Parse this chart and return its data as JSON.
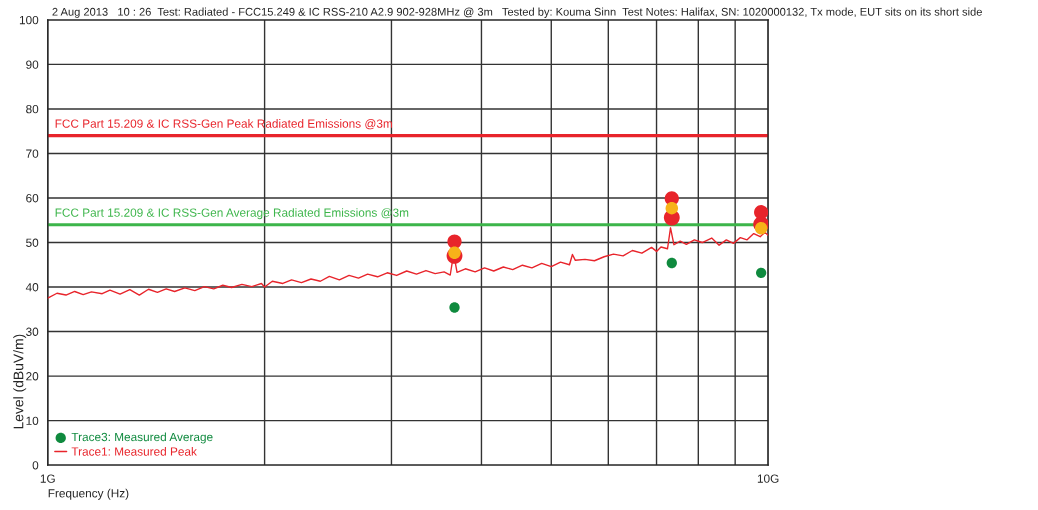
{
  "chart_data": {
    "type": "line",
    "title": "2 Aug 2013   10 : 26  Test: Radiated - FCC15.249 & IC RSS-210 A2.9 902-928MHz @ 3m   Tested by: Kouma Sinn  Test Notes: Halifax, SN: 1020000132, Tx mode, EUT sits on its short side",
    "xlabel": "Frequency (Hz)",
    "ylabel": "Level (dBuV/m)",
    "log": "x",
    "xlim": [
      1,
      10
    ],
    "xticks": [
      {
        "value": 1,
        "label": "1G"
      },
      {
        "value": 2,
        "label": null
      },
      {
        "value": 3,
        "label": null
      },
      {
        "value": 4,
        "label": null
      },
      {
        "value": 5,
        "label": null
      },
      {
        "value": 6,
        "label": null
      },
      {
        "value": 7,
        "label": null
      },
      {
        "value": 8,
        "label": null
      },
      {
        "value": 9,
        "label": null
      },
      {
        "value": 10,
        "label": "10G"
      }
    ],
    "ylim": [
      0,
      100
    ],
    "yticks": [
      0,
      10,
      20,
      30,
      40,
      50,
      60,
      70,
      80,
      90,
      100
    ],
    "grid": true,
    "legend": "bottom left",
    "series": [
      {
        "name": "Trace1: Measured Peak",
        "color": "#e8242b",
        "marker": "none",
        "x": [
          1.0,
          1.03,
          1.06,
          1.09,
          1.12,
          1.15,
          1.19,
          1.22,
          1.26,
          1.3,
          1.34,
          1.38,
          1.42,
          1.46,
          1.5,
          1.55,
          1.6,
          1.65,
          1.7,
          1.75,
          1.8,
          1.86,
          1.92,
          1.98,
          2.0,
          2.05,
          2.12,
          2.18,
          2.25,
          2.32,
          2.39,
          2.46,
          2.54,
          2.62,
          2.7,
          2.78,
          2.87,
          2.96,
          3.05,
          3.15,
          3.25,
          3.35,
          3.45,
          3.55,
          3.62,
          3.66,
          3.7,
          3.8,
          3.92,
          4.04,
          4.16,
          4.29,
          4.42,
          4.56,
          4.7,
          4.85,
          5.0,
          5.15,
          5.3,
          5.35,
          5.4,
          5.57,
          5.74,
          5.92,
          6.1,
          6.29,
          6.48,
          6.68,
          6.89,
          7.0,
          7.1,
          7.25,
          7.32,
          7.4,
          7.55,
          7.7,
          7.9,
          8.1,
          8.35,
          8.55,
          8.75,
          8.95,
          9.15,
          9.35,
          9.55,
          9.75,
          9.9,
          10.0
        ],
        "values": [
          37.5,
          38.6,
          38.2,
          39.0,
          38.3,
          38.9,
          38.5,
          39.3,
          38.4,
          39.4,
          38.2,
          39.5,
          38.8,
          39.6,
          39.0,
          39.8,
          39.2,
          40.1,
          39.6,
          40.4,
          39.9,
          40.6,
          40.1,
          40.8,
          40.0,
          41.3,
          40.8,
          41.6,
          41.0,
          41.8,
          41.3,
          42.4,
          41.6,
          42.6,
          42.0,
          42.9,
          42.3,
          43.2,
          42.6,
          43.6,
          42.9,
          43.7,
          43.0,
          43.4,
          42.7,
          47.5,
          43.3,
          44.1,
          43.4,
          44.3,
          43.6,
          44.5,
          43.9,
          44.9,
          44.3,
          45.3,
          44.6,
          45.6,
          45.0,
          47.3,
          46.0,
          46.2,
          45.9,
          46.8,
          47.4,
          47.0,
          48.2,
          47.6,
          48.9,
          48.0,
          49.0,
          48.6,
          53.3,
          49.5,
          50.3,
          49.6,
          50.6,
          50.0,
          51.0,
          49.4,
          50.6,
          49.8,
          51.1,
          50.6,
          52.0,
          51.3,
          52.3,
          51.6
        ]
      },
      {
        "type": "scatter",
        "color": "#e8242b",
        "marker": "circle",
        "x": [
          3.67,
          7.35,
          9.78
        ],
        "values": [
          47.0,
          55.6,
          54.1
        ]
      },
      {
        "type": "scatter",
        "color": "#e8242b",
        "marker": "circle",
        "x": [
          3.67,
          7.35,
          9.78
        ],
        "values": [
          50.2,
          59.9,
          56.8
        ]
      },
      {
        "type": "scatter",
        "color": "#f7b219",
        "marker": "circle",
        "x": [
          3.67,
          7.35,
          9.78
        ],
        "values": [
          47.7,
          57.7,
          53.2
        ]
      },
      {
        "name": "Trace3: Measured Average",
        "type": "scatter",
        "color": "#0f8a3e",
        "marker": "circle",
        "x": [
          3.67,
          7.35,
          9.78
        ],
        "values": [
          35.4,
          45.4,
          43.2
        ]
      }
    ],
    "ref_lines": [
      {
        "axis": "y",
        "value": 74,
        "label": "FCC Part 15.209 & IC RSS-Gen Peak Radiated Emissions @3m",
        "color": "#e8242b"
      },
      {
        "axis": "y",
        "value": 54,
        "label": "FCC Part 15.209 & IC RSS-Gen Average Radiated Emissions @3m",
        "color": "#3cb54a"
      }
    ]
  }
}
